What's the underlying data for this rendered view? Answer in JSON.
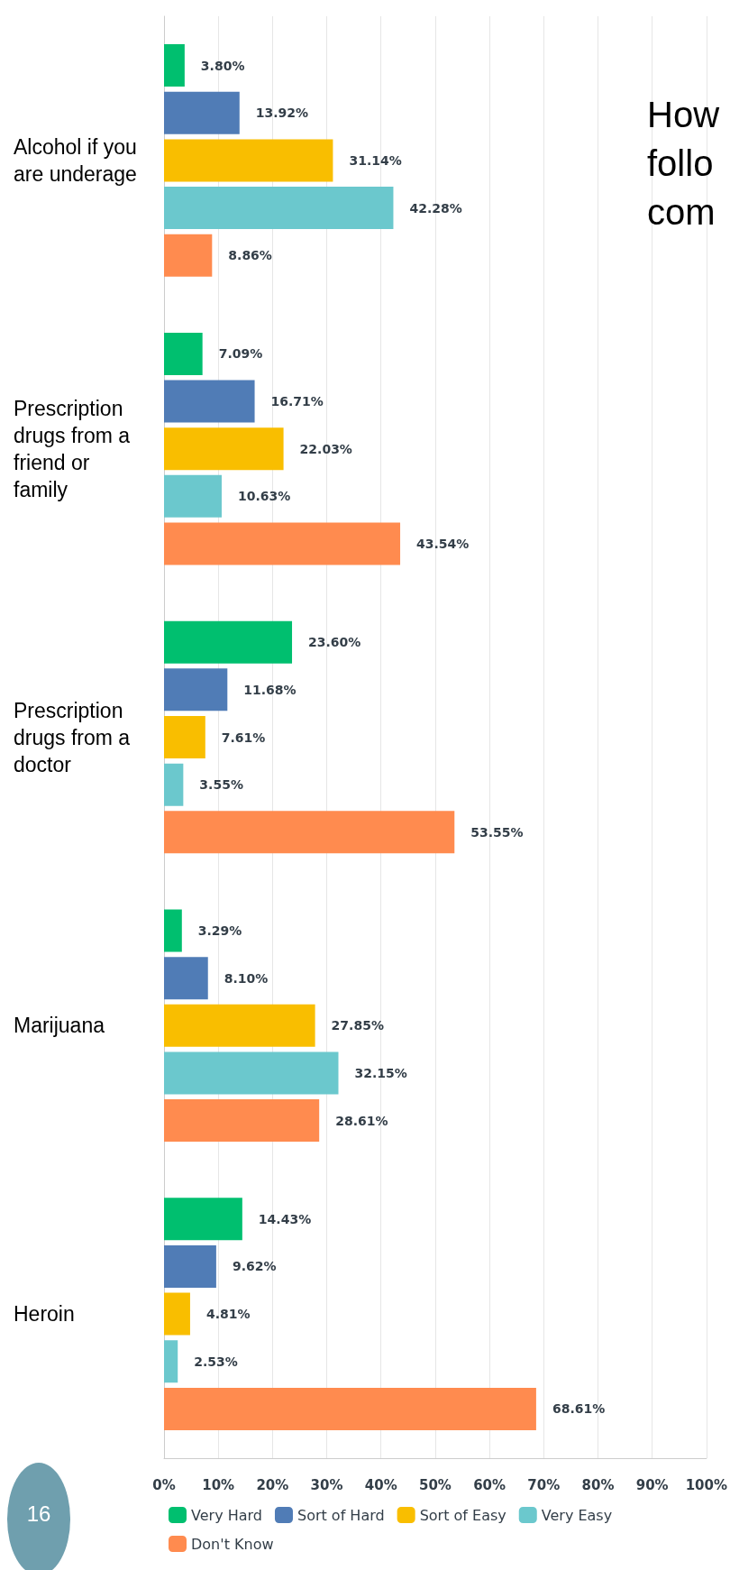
{
  "chart_data": {
    "type": "bar",
    "orientation": "horizontal",
    "categories": [
      "Alcohol if you are underage",
      "Prescription drugs from a friend or family",
      "Prescription drugs from a doctor",
      "Marijuana",
      "Heroin"
    ],
    "series": [
      {
        "name": "Very Hard",
        "color": "#00bf6f",
        "values": [
          3.8,
          7.09,
          23.6,
          3.29,
          14.43
        ],
        "value_labels": [
          "3.80%",
          "7.09%",
          "23.60%",
          "3.29%",
          "14.43%"
        ]
      },
      {
        "name": "Sort of Hard",
        "color": "#507cb6",
        "values": [
          13.92,
          16.71,
          11.68,
          8.1,
          9.62
        ],
        "value_labels": [
          "13.92%",
          "16.71%",
          "11.68%",
          "8.10%",
          "9.62%"
        ]
      },
      {
        "name": "Sort of Easy",
        "color": "#f9be00",
        "values": [
          31.14,
          22.03,
          7.61,
          27.85,
          4.81
        ],
        "value_labels": [
          "31.14%",
          "22.03%",
          "7.61%",
          "27.85%",
          "4.81%"
        ]
      },
      {
        "name": "Very Easy",
        "color": "#6bc8cd",
        "values": [
          42.28,
          10.63,
          3.55,
          32.15,
          2.53
        ],
        "value_labels": [
          "42.28%",
          "10.63%",
          "3.55%",
          "32.15%",
          "2.53%"
        ]
      },
      {
        "name": "Don't Know",
        "color": "#ff8b4f",
        "values": [
          8.86,
          43.54,
          53.55,
          28.61,
          68.61
        ],
        "value_labels": [
          "8.86%",
          "43.54%",
          "53.55%",
          "28.61%",
          "68.61%"
        ]
      }
    ],
    "xlim": [
      0,
      100
    ],
    "xticks": [
      {
        "value": 0,
        "label": "0%"
      },
      {
        "value": 10,
        "label": "10%"
      },
      {
        "value": 20,
        "label": "20%"
      },
      {
        "value": 30,
        "label": "30%"
      },
      {
        "value": 40,
        "label": "40%"
      },
      {
        "value": 50,
        "label": "50%"
      },
      {
        "value": 60,
        "label": "60%"
      },
      {
        "value": 70,
        "label": "70%"
      },
      {
        "value": 80,
        "label": "80%"
      },
      {
        "value": 90,
        "label": "90%"
      },
      {
        "value": 100,
        "label": "100%"
      }
    ],
    "grid": "x",
    "legend": "bottom",
    "annotations": [
      "How\nfollo\ncom",
      "16"
    ]
  }
}
